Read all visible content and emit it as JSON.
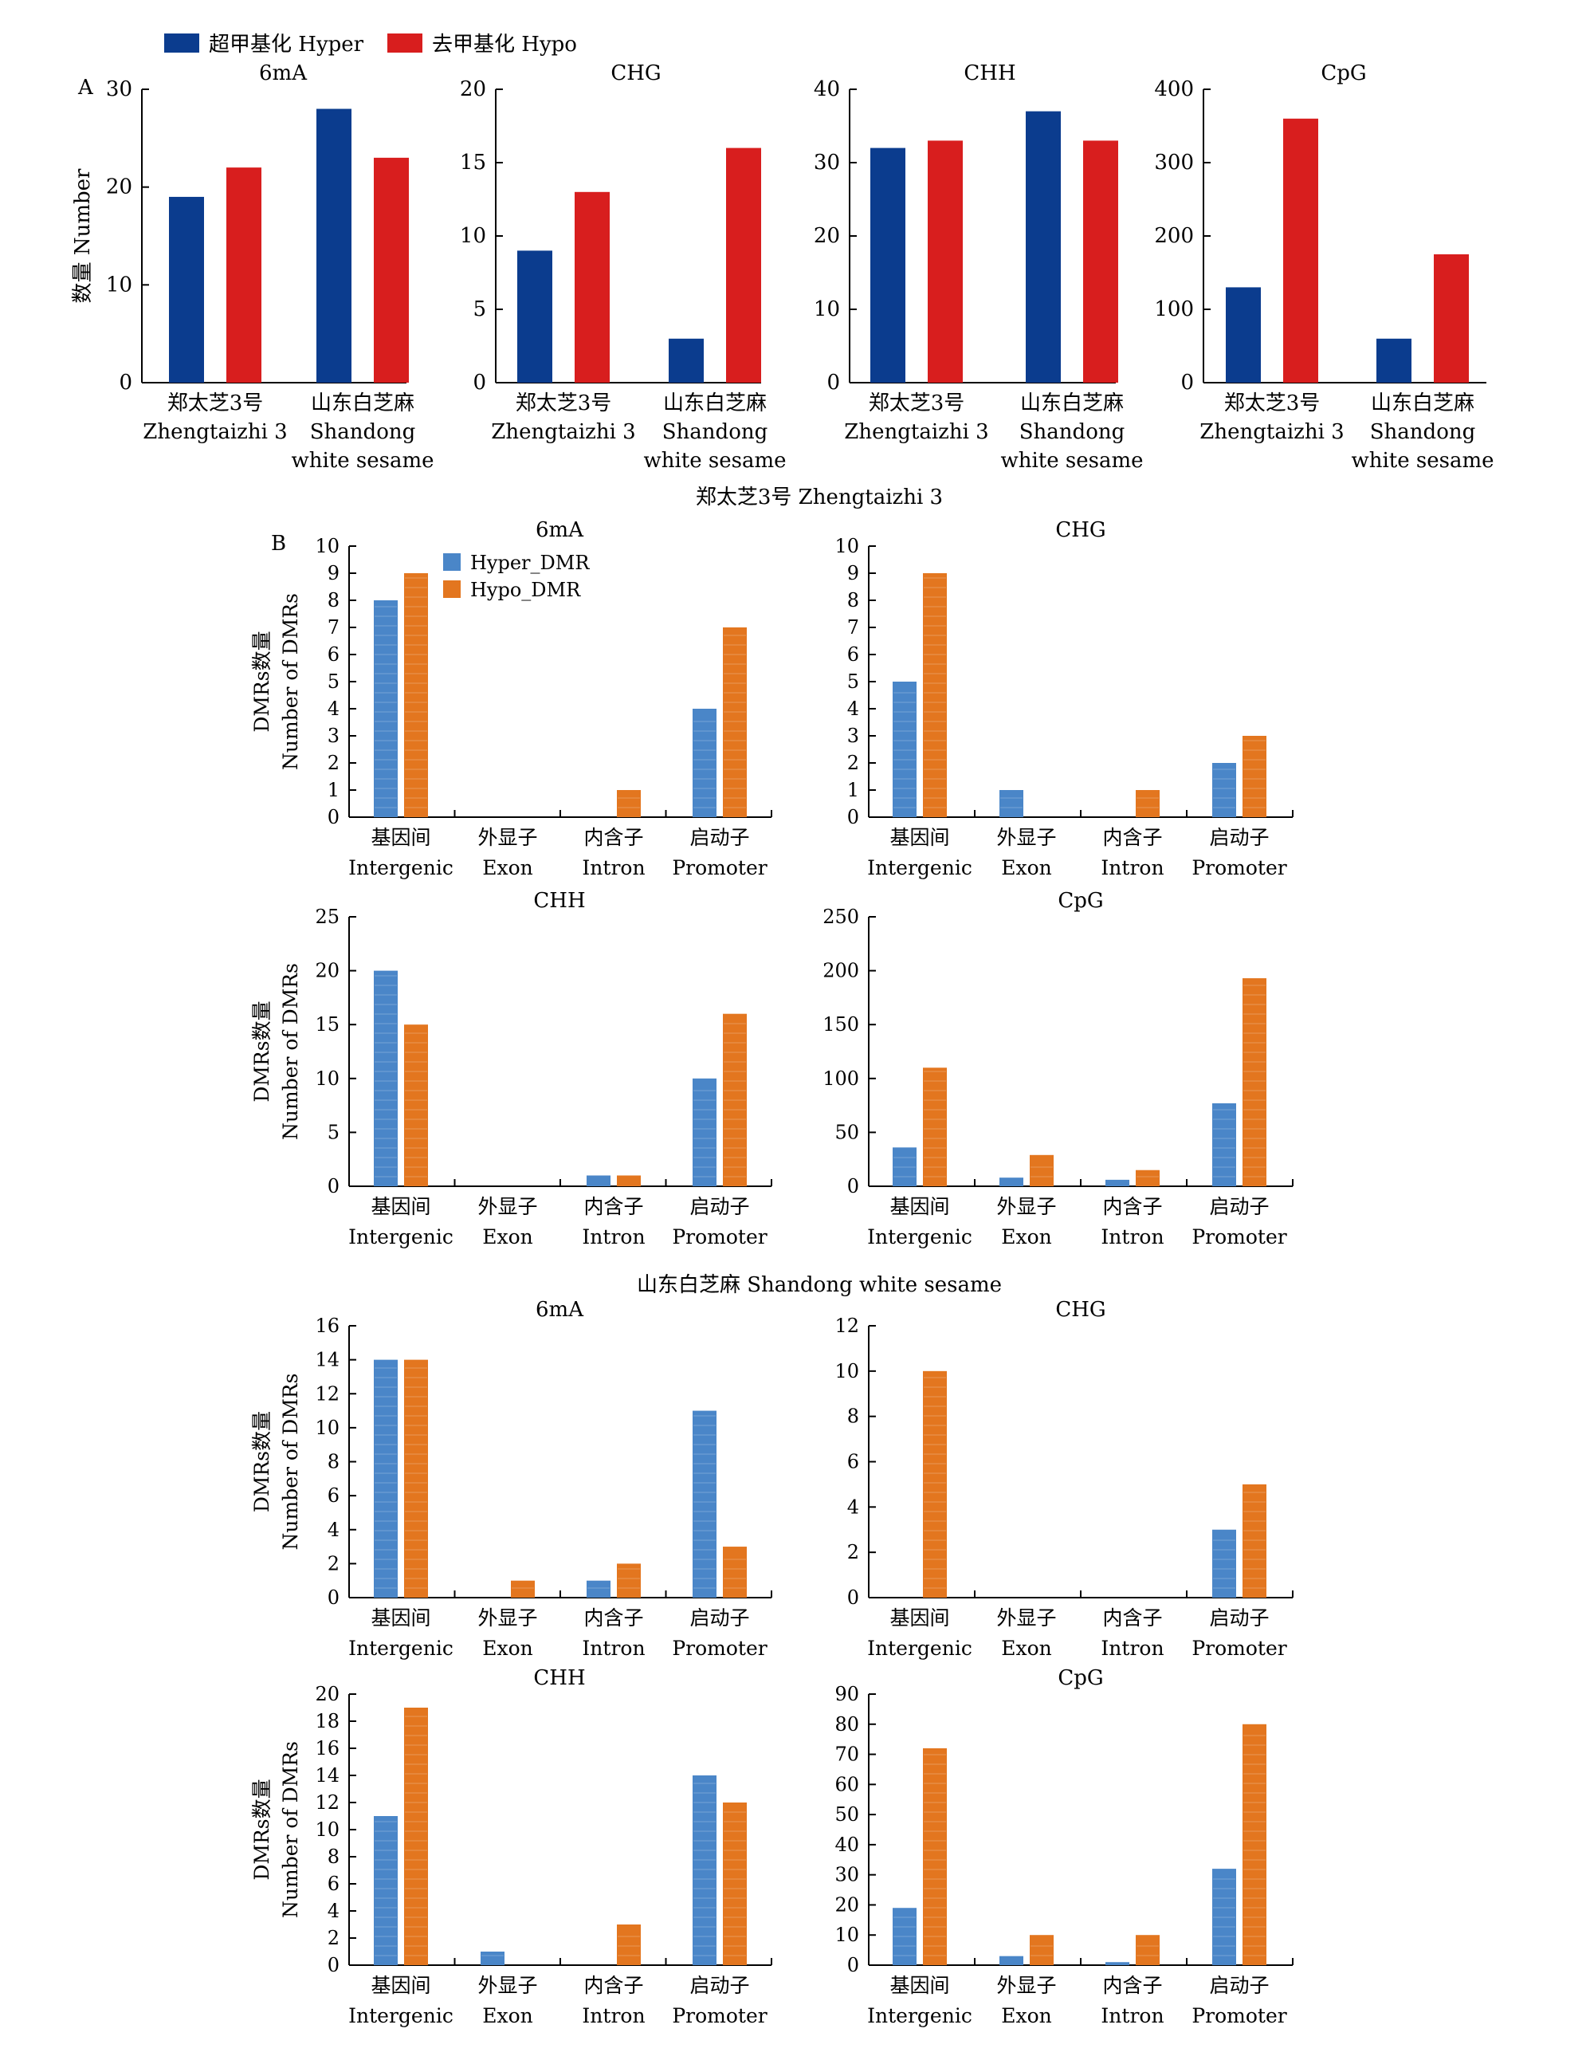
{
  "figure": {
    "legend_a": {
      "hyper": "超甲基化 Hyper",
      "hypo": "去甲基化 Hypo"
    },
    "legend_b": {
      "hyper": "Hyper_DMR",
      "hypo": "Hypo_DMR"
    },
    "panel_a_label": "A",
    "panel_b_label": "B",
    "section1_title": "郑太芝3号 Zhengtaizhi 3",
    "section2_title": "山东白芝麻 Shandong white sesame",
    "colors": {
      "a_hyper": "#0b3c8e",
      "a_hypo": "#d81e1e",
      "b_hyper": "#4a86c8",
      "b_hypo": "#e3761f"
    }
  },
  "chart_data": [
    {
      "id": "a-6mA",
      "type": "bar",
      "title": "6mA",
      "ylabel": "数量 Number",
      "ylim": [
        0,
        30
      ],
      "yticks": [
        0,
        10,
        20,
        30
      ],
      "categories": [
        [
          "郑太芝3号",
          "Zhengtaizhi 3"
        ],
        [
          "山东白芝麻",
          "Shandong",
          "white sesame"
        ]
      ],
      "series": [
        {
          "name": "超甲基化 Hyper",
          "values": [
            19,
            28
          ]
        },
        {
          "name": "去甲基化 Hypo",
          "values": [
            22,
            23
          ]
        }
      ]
    },
    {
      "id": "a-CHG",
      "type": "bar",
      "title": "CHG",
      "ylim": [
        0,
        20
      ],
      "yticks": [
        0,
        5,
        10,
        15,
        20
      ],
      "categories": [
        [
          "郑太芝3号",
          "Zhengtaizhi 3"
        ],
        [
          "山东白芝麻",
          "Shandong",
          "white sesame"
        ]
      ],
      "series": [
        {
          "name": "超甲基化 Hyper",
          "values": [
            9,
            3
          ]
        },
        {
          "name": "去甲基化 Hypo",
          "values": [
            13,
            16
          ]
        }
      ]
    },
    {
      "id": "a-CHH",
      "type": "bar",
      "title": "CHH",
      "ylim": [
        0,
        40
      ],
      "yticks": [
        0,
        10,
        20,
        30,
        40
      ],
      "categories": [
        [
          "郑太芝3号",
          "Zhengtaizhi 3"
        ],
        [
          "山东白芝麻",
          "Shandong",
          "white sesame"
        ]
      ],
      "series": [
        {
          "name": "超甲基化 Hyper",
          "values": [
            32,
            37
          ]
        },
        {
          "name": "去甲基化 Hypo",
          "values": [
            33,
            33
          ]
        }
      ]
    },
    {
      "id": "a-CpG",
      "type": "bar",
      "title": "CpG",
      "ylim": [
        0,
        400
      ],
      "yticks": [
        0,
        100,
        200,
        300,
        400
      ],
      "categories": [
        [
          "郑太芝3号",
          "Zhengtaizhi 3"
        ],
        [
          "山东白芝麻",
          "Shandong",
          "white sesame"
        ]
      ],
      "series": [
        {
          "name": "超甲基化 Hyper",
          "values": [
            130,
            60
          ]
        },
        {
          "name": "去甲基化 Hypo",
          "values": [
            360,
            175
          ]
        }
      ]
    },
    {
      "id": "z-6mA",
      "type": "bar",
      "title": "6mA",
      "ylabel": [
        "DMRs数量",
        "Number of DMRs"
      ],
      "ylim": [
        0,
        10
      ],
      "yticks": [
        0,
        1,
        2,
        3,
        4,
        5,
        6,
        7,
        8,
        9,
        10
      ],
      "categories": [
        [
          "基因间",
          "Intergenic"
        ],
        [
          "外显子",
          "Exon"
        ],
        [
          "内含子",
          "Intron"
        ],
        [
          "启动子",
          "Promoter"
        ]
      ],
      "series": [
        {
          "name": "Hyper_DMR",
          "values": [
            8,
            0,
            0,
            4
          ]
        },
        {
          "name": "Hypo_DMR",
          "values": [
            9,
            0,
            1,
            7
          ]
        }
      ]
    },
    {
      "id": "z-CHG",
      "type": "bar",
      "title": "CHG",
      "ylim": [
        0,
        10
      ],
      "yticks": [
        0,
        1,
        2,
        3,
        4,
        5,
        6,
        7,
        8,
        9,
        10
      ],
      "categories": [
        [
          "基因间",
          "Intergenic"
        ],
        [
          "外显子",
          "Exon"
        ],
        [
          "内含子",
          "Intron"
        ],
        [
          "启动子",
          "Promoter"
        ]
      ],
      "series": [
        {
          "name": "Hyper_DMR",
          "values": [
            5,
            1,
            0,
            2
          ]
        },
        {
          "name": "Hypo_DMR",
          "values": [
            9,
            0,
            1,
            3
          ]
        }
      ]
    },
    {
      "id": "z-CHH",
      "type": "bar",
      "title": "CHH",
      "ylabel": [
        "DMRs数量",
        "Number of DMRs"
      ],
      "ylim": [
        0,
        25
      ],
      "yticks": [
        0,
        5,
        10,
        15,
        20,
        25
      ],
      "categories": [
        [
          "基因间",
          "Intergenic"
        ],
        [
          "外显子",
          "Exon"
        ],
        [
          "内含子",
          "Intron"
        ],
        [
          "启动子",
          "Promoter"
        ]
      ],
      "series": [
        {
          "name": "Hyper_DMR",
          "values": [
            20,
            0,
            1,
            10
          ]
        },
        {
          "name": "Hypo_DMR",
          "values": [
            15,
            0,
            1,
            16
          ]
        }
      ]
    },
    {
      "id": "z-CpG",
      "type": "bar",
      "title": "CpG",
      "ylim": [
        0,
        250
      ],
      "yticks": [
        0,
        50,
        100,
        150,
        200,
        250
      ],
      "categories": [
        [
          "基因间",
          "Intergenic"
        ],
        [
          "外显子",
          "Exon"
        ],
        [
          "内含子",
          "Intron"
        ],
        [
          "启动子",
          "Promoter"
        ]
      ],
      "series": [
        {
          "name": "Hyper_DMR",
          "values": [
            36,
            8,
            6,
            77
          ]
        },
        {
          "name": "Hypo_DMR",
          "values": [
            110,
            29,
            15,
            193
          ]
        }
      ]
    },
    {
      "id": "s-6mA",
      "type": "bar",
      "title": "6mA",
      "ylabel": [
        "DMRs数量",
        "Number of DMRs"
      ],
      "ylim": [
        0,
        16
      ],
      "yticks": [
        0,
        2,
        4,
        6,
        8,
        10,
        12,
        14,
        16
      ],
      "categories": [
        [
          "基因间",
          "Intergenic"
        ],
        [
          "外显子",
          "Exon"
        ],
        [
          "内含子",
          "Intron"
        ],
        [
          "启动子",
          "Promoter"
        ]
      ],
      "series": [
        {
          "name": "Hyper_DMR",
          "values": [
            14,
            0,
            1,
            11
          ]
        },
        {
          "name": "Hypo_DMR",
          "values": [
            14,
            1,
            2,
            3
          ]
        }
      ]
    },
    {
      "id": "s-CHG",
      "type": "bar",
      "title": "CHG",
      "ylim": [
        0,
        12
      ],
      "yticks": [
        0,
        2,
        4,
        6,
        8,
        10,
        12
      ],
      "categories": [
        [
          "基因间",
          "Intergenic"
        ],
        [
          "外显子",
          "Exon"
        ],
        [
          "内含子",
          "Intron"
        ],
        [
          "启动子",
          "Promoter"
        ]
      ],
      "series": [
        {
          "name": "Hyper_DMR",
          "values": [
            0,
            0,
            0,
            3
          ]
        },
        {
          "name": "Hypo_DMR",
          "values": [
            10,
            0,
            0,
            5
          ]
        }
      ]
    },
    {
      "id": "s-CHH",
      "type": "bar",
      "title": "CHH",
      "ylabel": [
        "DMRs数量",
        "Number of DMRs"
      ],
      "ylim": [
        0,
        20
      ],
      "yticks": [
        0,
        2,
        4,
        6,
        8,
        10,
        12,
        14,
        16,
        18,
        20
      ],
      "categories": [
        [
          "基因间",
          "Intergenic"
        ],
        [
          "外显子",
          "Exon"
        ],
        [
          "内含子",
          "Intron"
        ],
        [
          "启动子",
          "Promoter"
        ]
      ],
      "series": [
        {
          "name": "Hyper_DMR",
          "values": [
            11,
            1,
            0,
            14
          ]
        },
        {
          "name": "Hypo_DMR",
          "values": [
            19,
            0,
            3,
            12
          ]
        }
      ]
    },
    {
      "id": "s-CpG",
      "type": "bar",
      "title": "CpG",
      "ylim": [
        0,
        90
      ],
      "yticks": [
        0,
        10,
        20,
        30,
        40,
        50,
        60,
        70,
        80,
        90
      ],
      "categories": [
        [
          "基因间",
          "Intergenic"
        ],
        [
          "外显子",
          "Exon"
        ],
        [
          "内含子",
          "Intron"
        ],
        [
          "启动子",
          "Promoter"
        ]
      ],
      "series": [
        {
          "name": "Hyper_DMR",
          "values": [
            19,
            3,
            1,
            32
          ]
        },
        {
          "name": "Hypo_DMR",
          "values": [
            72,
            10,
            10,
            80
          ]
        }
      ]
    }
  ]
}
